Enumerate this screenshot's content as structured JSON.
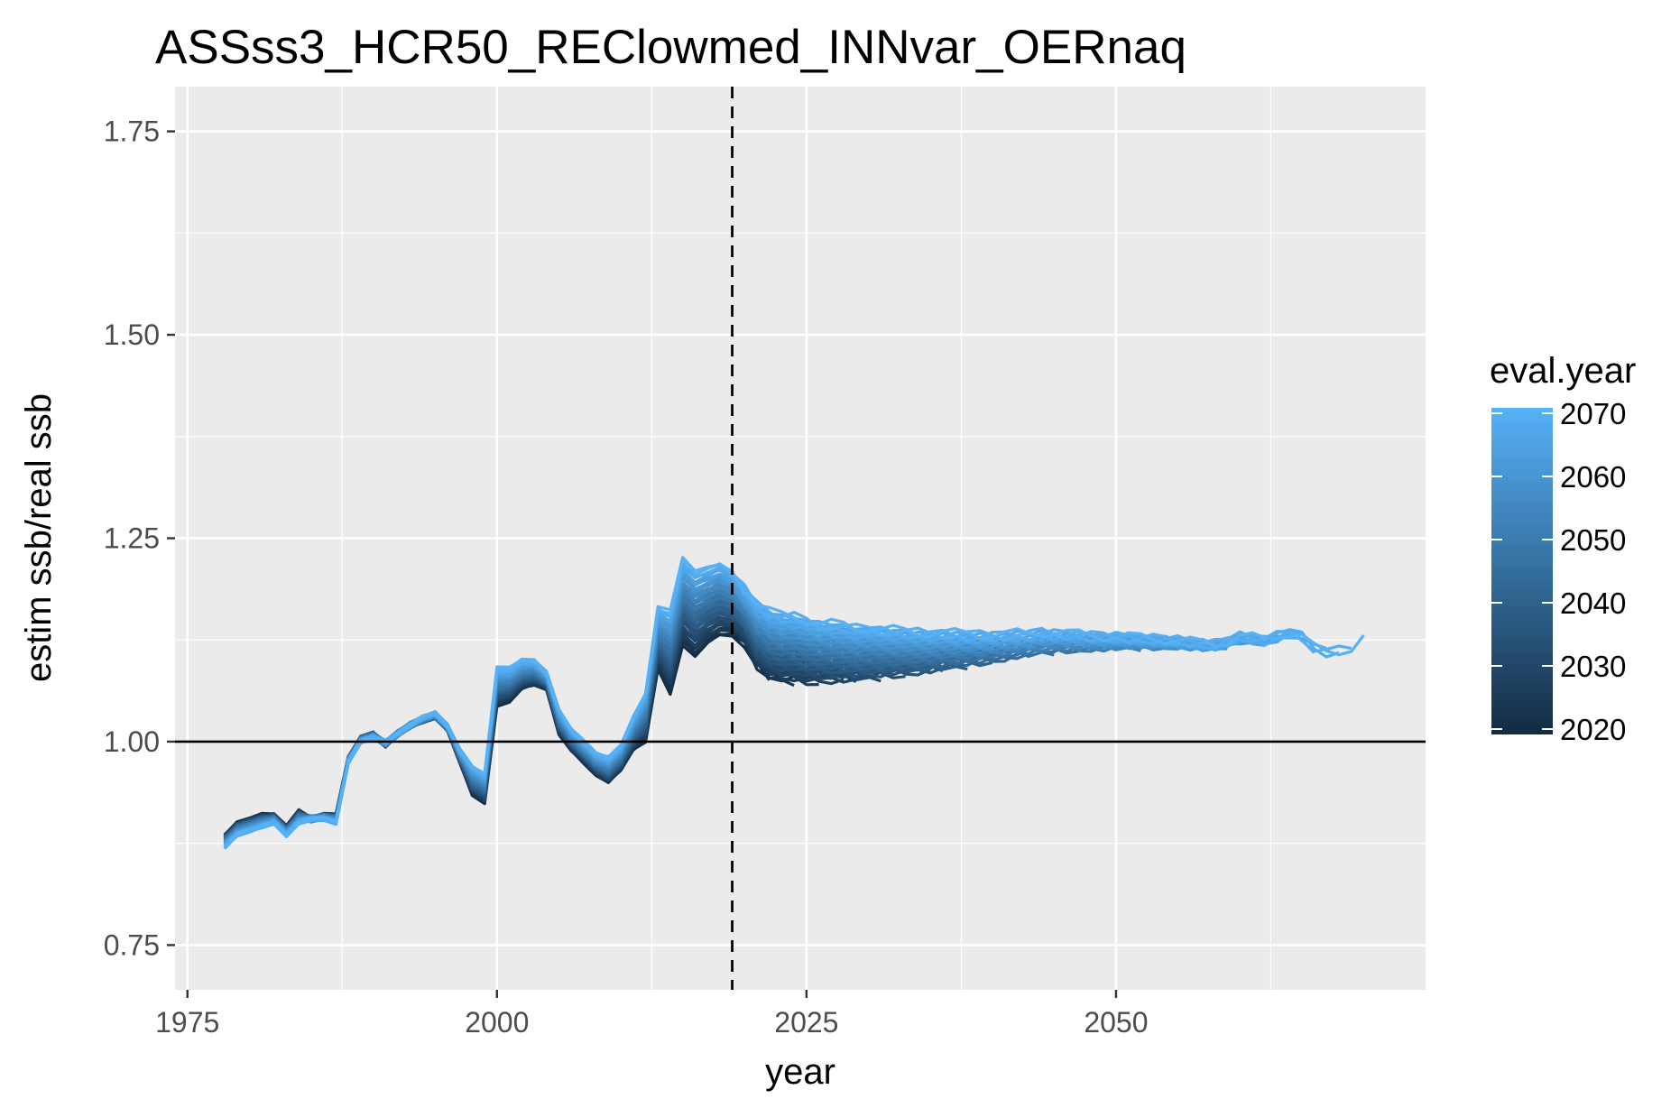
{
  "chart_data": {
    "type": "line",
    "title": "ASSss3_HCR50_REClowmed_INNvar_OERnaq",
    "xlabel": "year",
    "ylabel": "estim ssb/real ssb",
    "xlim": [
      1974,
      2075
    ],
    "ylim": [
      0.695,
      1.805
    ],
    "x_ticks": [
      1975,
      2000,
      2025,
      2050
    ],
    "x_tick_labels": [
      "1975",
      "2000",
      "2025",
      "2050"
    ],
    "y_ticks": [
      0.75,
      1.0,
      1.25,
      1.5,
      1.75
    ],
    "y_tick_labels": [
      "0.75",
      "1.00",
      "1.25",
      "1.50",
      "1.75"
    ],
    "grid": true,
    "reference_lines": [
      {
        "type": "horizontal",
        "y": 1.0,
        "style": "solid",
        "color": "#000000"
      },
      {
        "type": "vertical",
        "x": 2019,
        "style": "dashed",
        "color": "#000000"
      }
    ],
    "color_scale": {
      "title": "eval.year",
      "min": 2020,
      "max": 2070,
      "low_color": "#132B43",
      "high_color": "#56B1F7",
      "ticks": [
        2020,
        2030,
        2040,
        2050,
        2060,
        2070
      ],
      "tick_labels": [
        "2020",
        "2030",
        "2040",
        "2050",
        "2060",
        "2070"
      ],
      "legend_position": "right"
    },
    "history": {
      "x": [
        1978,
        1979,
        1980,
        1981,
        1982,
        1983,
        1984,
        1985,
        1986,
        1987,
        1988,
        1989,
        1990,
        1991,
        1992,
        1993,
        1994,
        1995,
        1996,
        1997,
        1998,
        1999,
        2000,
        2001,
        2002,
        2003,
        2004,
        2005,
        2006,
        2007,
        2008,
        2009,
        2010,
        2011,
        2012,
        2013,
        2014,
        2015,
        2016,
        2017,
        2018,
        2019
      ],
      "y_latest": [
        0.87,
        0.885,
        0.89,
        0.895,
        0.9,
        0.885,
        0.9,
        0.905,
        0.905,
        0.9,
        0.975,
        1.0,
        1.005,
        1.0,
        1.01,
        1.02,
        1.03,
        1.035,
        1.02,
        0.99,
        0.97,
        0.96,
        1.09,
        1.09,
        1.1,
        1.1,
        1.085,
        1.04,
        1.015,
        1.0,
        0.985,
        0.98,
        0.995,
        1.03,
        1.06,
        1.165,
        1.16,
        1.225,
        1.21,
        1.215,
        1.22,
        1.21
      ],
      "y_earliest": [
        0.885,
        0.9,
        0.905,
        0.91,
        0.91,
        0.895,
        0.915,
        0.905,
        0.91,
        0.91,
        0.98,
        1.005,
        1.01,
        0.995,
        1.01,
        1.02,
        1.025,
        1.03,
        1.015,
        0.975,
        0.935,
        0.925,
        1.045,
        1.05,
        1.065,
        1.07,
        1.065,
        1.01,
        0.99,
        0.975,
        0.96,
        0.95,
        0.965,
        0.99,
        1.0,
        1.09,
        1.06,
        1.12,
        1.105,
        1.12,
        1.13,
        1.13
      ]
    },
    "projection": {
      "x": [
        2020,
        2021,
        2022,
        2023,
        2024,
        2025,
        2026,
        2027,
        2028,
        2029,
        2030,
        2031,
        2032,
        2033,
        2034,
        2035,
        2036,
        2037,
        2038,
        2039,
        2040,
        2041,
        2042,
        2043,
        2044,
        2045,
        2046,
        2047,
        2048,
        2049,
        2050,
        2051,
        2052,
        2053,
        2054,
        2055,
        2056,
        2057,
        2058,
        2059,
        2060,
        2061,
        2062,
        2063,
        2064,
        2065,
        2066,
        2067,
        2068,
        2069,
        2070
      ],
      "y_upper": [
        1.19,
        1.17,
        1.16,
        1.155,
        1.155,
        1.15,
        1.145,
        1.145,
        1.143,
        1.14,
        1.14,
        1.138,
        1.137,
        1.136,
        1.135,
        1.134,
        1.134,
        1.133,
        1.133,
        1.132,
        1.132,
        1.132,
        1.133,
        1.133,
        1.135,
        1.134,
        1.133,
        1.132,
        1.131,
        1.13,
        1.13,
        1.129,
        1.128,
        1.127,
        1.126,
        1.125,
        1.123,
        1.121,
        1.12,
        1.124,
        1.13,
        1.128,
        1.125,
        1.13,
        1.135,
        1.13,
        1.115,
        1.11,
        1.112,
        1.115,
        1.128
      ],
      "y_lower": [
        1.12,
        1.09,
        1.075,
        1.07,
        1.068,
        1.065,
        1.065,
        1.064,
        1.063,
        1.063,
        1.064,
        1.064,
        1.065,
        1.066,
        1.067,
        1.068,
        1.07,
        1.072,
        1.074,
        1.077,
        1.08,
        1.082,
        1.085,
        1.087,
        1.089,
        1.091,
        1.093,
        1.094,
        1.095,
        1.096,
        1.097,
        1.098,
        1.099,
        1.1,
        1.101,
        1.102,
        1.103,
        1.104,
        1.105,
        1.106,
        1.107,
        1.108,
        1.109,
        1.11,
        1.111,
        1.112,
        1.113,
        1.11,
        1.108,
        1.11,
        1.128
      ]
    }
  }
}
